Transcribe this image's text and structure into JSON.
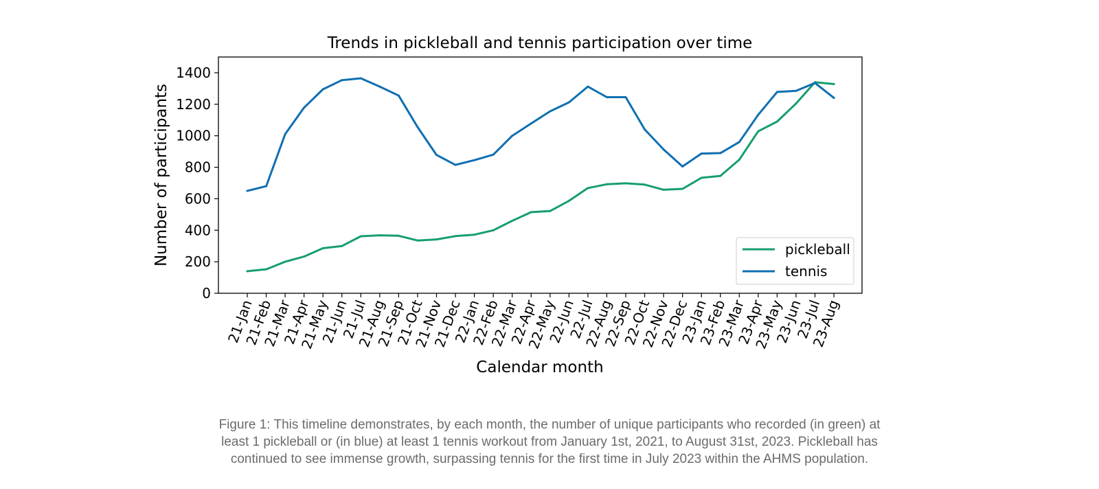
{
  "chart_data": {
    "type": "line",
    "title": "Trends in pickleball and tennis participation over time",
    "xlabel": "Calendar month",
    "ylabel": "Number of participants",
    "ylim": [
      0,
      1500
    ],
    "yticks": [
      0,
      200,
      400,
      600,
      800,
      1000,
      1200,
      1400
    ],
    "grid": false,
    "legend_position": "lower-right",
    "categories": [
      "21-Jan",
      "21-Feb",
      "21-Mar",
      "21-Apr",
      "21-May",
      "21-Jun",
      "21-Jul",
      "21-Aug",
      "21-Sep",
      "21-Oct",
      "21-Nov",
      "21-Dec",
      "22-Jan",
      "22-Feb",
      "22-Mar",
      "22-Apr",
      "22-May",
      "22-Jun",
      "22-Jul",
      "22-Aug",
      "22-Sep",
      "22-Oct",
      "22-Nov",
      "22-Dec",
      "23-Jan",
      "23-Feb",
      "23-Mar",
      "23-Apr",
      "23-May",
      "23-Jun",
      "23-Jul",
      "23-Aug"
    ],
    "series": [
      {
        "name": "pickleball",
        "color": "#169e6e",
        "values": [
          140,
          152,
          200,
          233,
          286,
          300,
          362,
          368,
          365,
          335,
          342,
          363,
          372,
          400,
          460,
          515,
          522,
          587,
          668,
          692,
          698,
          690,
          657,
          663,
          733,
          745,
          848,
          1028,
          1090,
          1205,
          1340,
          1328
        ]
      },
      {
        "name": "tennis",
        "color": "#0f6fb1",
        "values": [
          650,
          680,
          1010,
          1178,
          1295,
          1353,
          1365,
          1312,
          1255,
          1055,
          878,
          815,
          845,
          880,
          1000,
          1078,
          1155,
          1212,
          1312,
          1245,
          1245,
          1040,
          913,
          805,
          887,
          890,
          960,
          1133,
          1278,
          1285,
          1335,
          1240
        ]
      }
    ]
  },
  "caption": {
    "line1": "Figure 1: This timeline demonstrates, by each month, the number of unique participants who recorded (in green) at",
    "line2": "least 1 pickleball or (in blue) at least 1 tennis workout from January 1st, 2021, to August 31st, 2023. Pickleball has",
    "line3": "continued to see immense growth, surpassing tennis for the first time in July 2023 within the AHMS population."
  }
}
